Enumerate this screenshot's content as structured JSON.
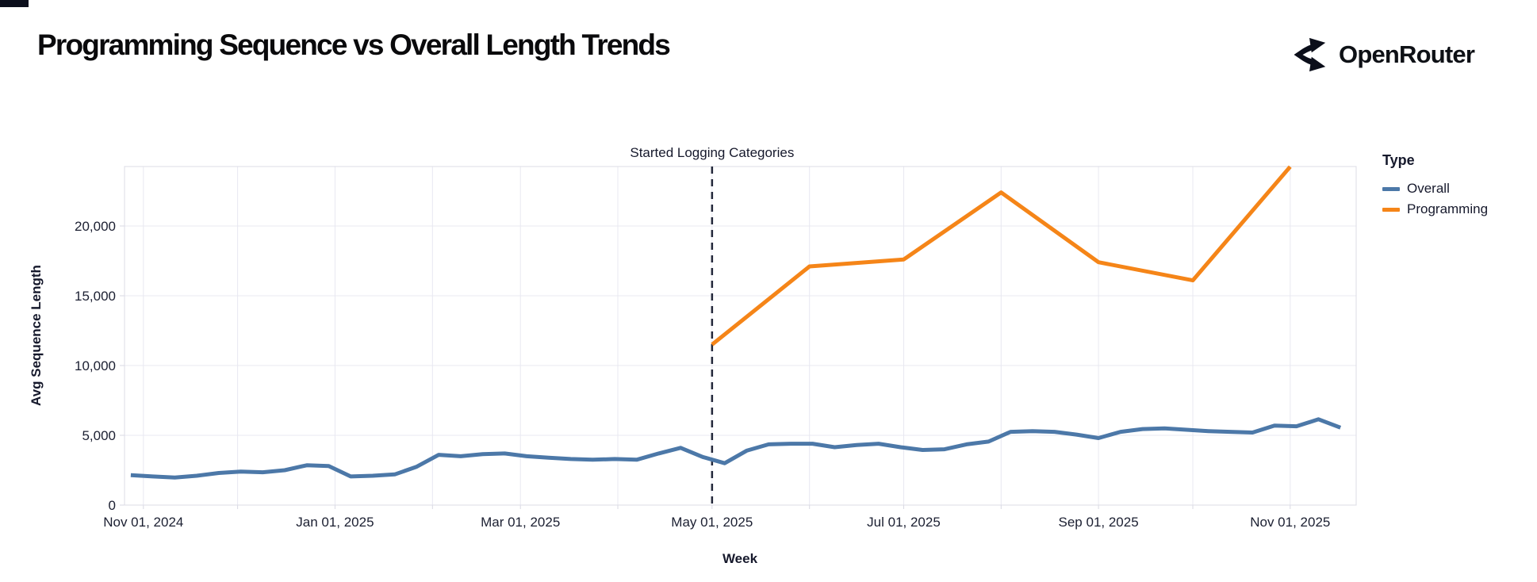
{
  "page": {
    "title": "Programming Sequence vs Overall Length Trends"
  },
  "brand": {
    "name": "OpenRouter",
    "icon": "openrouter-logo-icon"
  },
  "colors": {
    "overall_line": "#4c78a8",
    "programming_line": "#f58518",
    "gridline": "#e8e8f1",
    "plot_border": "#dcdce6",
    "dashed_rule": "#23283b",
    "text_dark": "#16192c"
  },
  "chart_data": {
    "type": "line",
    "title": "Programming Sequence vs Overall Length Trends",
    "xlabel": "Week",
    "ylabel": "Avg Sequence Length",
    "legend_title": "Type",
    "legend_position": "right",
    "grid": true,
    "x_domain": [
      "2024-10-26",
      "2025-11-22"
    ],
    "ylim": [
      0,
      24260
    ],
    "y_ticks": [
      {
        "value": 0,
        "label": "0"
      },
      {
        "value": 5000,
        "label": "5,000"
      },
      {
        "value": 10000,
        "label": "10,000"
      },
      {
        "value": 15000,
        "label": "15,000"
      },
      {
        "value": 20000,
        "label": "20,000"
      }
    ],
    "x_gridlines": [
      "2024-11-01",
      "2024-12-01",
      "2025-01-01",
      "2025-02-01",
      "2025-03-01",
      "2025-04-01",
      "2025-05-01",
      "2025-06-01",
      "2025-07-01",
      "2025-08-01",
      "2025-09-01",
      "2025-10-01",
      "2025-11-01"
    ],
    "x_ticks": [
      {
        "date": "2024-11-01",
        "label": "Nov 01, 2024"
      },
      {
        "date": "2025-01-01",
        "label": "Jan 01, 2025"
      },
      {
        "date": "2025-03-01",
        "label": "Mar 01, 2025"
      },
      {
        "date": "2025-05-01",
        "label": "May 01, 2025"
      },
      {
        "date": "2025-07-01",
        "label": "Jul 01, 2025"
      },
      {
        "date": "2025-09-01",
        "label": "Sep 01, 2025"
      },
      {
        "date": "2025-11-01",
        "label": "Nov 01, 2025"
      }
    ],
    "annotation": {
      "text": "Started Logging Categories",
      "x": "2025-05-01"
    },
    "series": [
      {
        "name": "Overall",
        "color": "#4c78a8",
        "x": [
          "2024-10-28",
          "2024-11-04",
          "2024-11-11",
          "2024-11-18",
          "2024-11-25",
          "2024-12-02",
          "2024-12-09",
          "2024-12-16",
          "2024-12-23",
          "2024-12-30",
          "2025-01-06",
          "2025-01-13",
          "2025-01-20",
          "2025-01-27",
          "2025-02-03",
          "2025-02-10",
          "2025-02-17",
          "2025-02-24",
          "2025-03-03",
          "2025-03-10",
          "2025-03-17",
          "2025-03-24",
          "2025-03-31",
          "2025-04-07",
          "2025-04-14",
          "2025-04-21",
          "2025-04-28",
          "2025-05-05",
          "2025-05-12",
          "2025-05-19",
          "2025-05-26",
          "2025-06-02",
          "2025-06-09",
          "2025-06-16",
          "2025-06-23",
          "2025-06-30",
          "2025-07-07",
          "2025-07-14",
          "2025-07-21",
          "2025-07-28",
          "2025-08-04",
          "2025-08-11",
          "2025-08-18",
          "2025-08-25",
          "2025-09-01",
          "2025-09-08",
          "2025-09-15",
          "2025-09-22",
          "2025-09-29",
          "2025-10-06",
          "2025-10-13",
          "2025-10-20",
          "2025-10-27",
          "2025-11-03",
          "2025-11-10",
          "2025-11-17"
        ],
        "values": [
          2150,
          2050,
          1980,
          2100,
          2300,
          2400,
          2350,
          2500,
          2850,
          2800,
          2050,
          2100,
          2200,
          2750,
          3600,
          3500,
          3650,
          3700,
          3500,
          3400,
          3300,
          3250,
          3300,
          3250,
          3700,
          4100,
          3450,
          3000,
          3900,
          4350,
          4400,
          4400,
          4150,
          4300,
          4400,
          4150,
          3950,
          4000,
          4350,
          4550,
          5250,
          5300,
          5250,
          5050,
          4800,
          5250,
          5450,
          5500,
          5400,
          5300,
          5250,
          5200,
          5700,
          5650,
          6150,
          5550
        ]
      },
      {
        "name": "Programming",
        "color": "#f58518",
        "x": [
          "2025-05-01",
          "2025-06-01",
          "2025-07-01",
          "2025-08-01",
          "2025-09-01",
          "2025-10-01",
          "2025-11-01"
        ],
        "values": [
          11500,
          17100,
          17600,
          22400,
          17400,
          16100,
          24250
        ]
      }
    ]
  }
}
